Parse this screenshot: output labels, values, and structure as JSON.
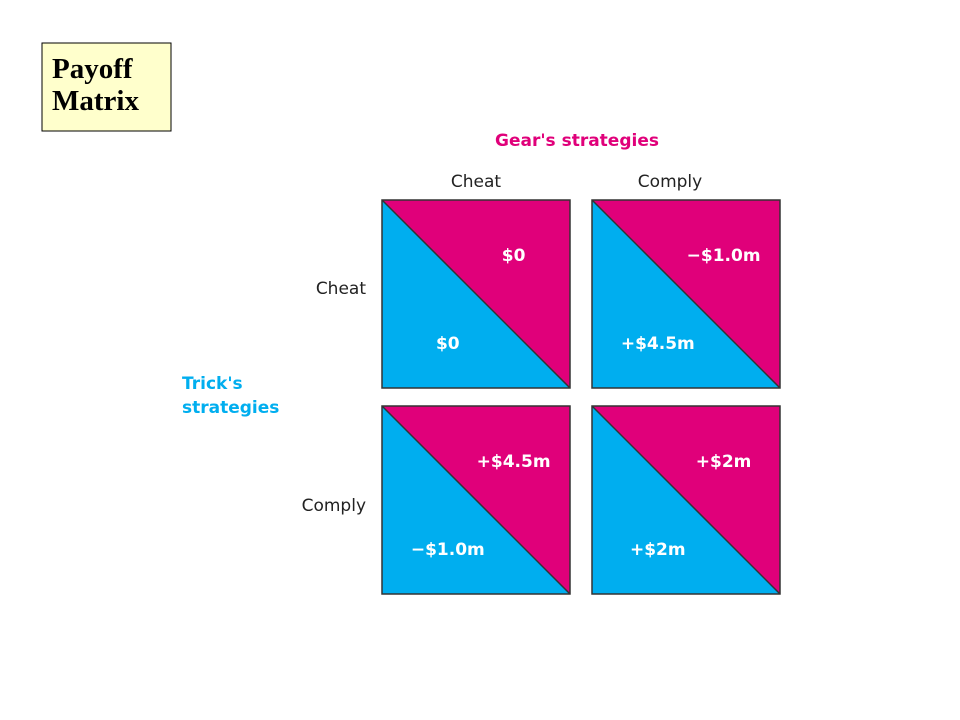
{
  "title": "Payoff Matrix",
  "column_header": "Gear's strategies",
  "columns": [
    "Cheat",
    "Comply"
  ],
  "row_header": [
    "Trick's",
    "strategies"
  ],
  "rows": [
    "Cheat",
    "Comply"
  ],
  "cells": [
    [
      {
        "gear": "$0",
        "trick": "$0"
      },
      {
        "gear": "−$1.0m",
        "trick": "+$4.5m"
      }
    ],
    [
      {
        "gear": "+$4.5m",
        "trick": "−$1.0m"
      },
      {
        "gear": "+$2m",
        "trick": "+$2m"
      }
    ]
  ]
}
